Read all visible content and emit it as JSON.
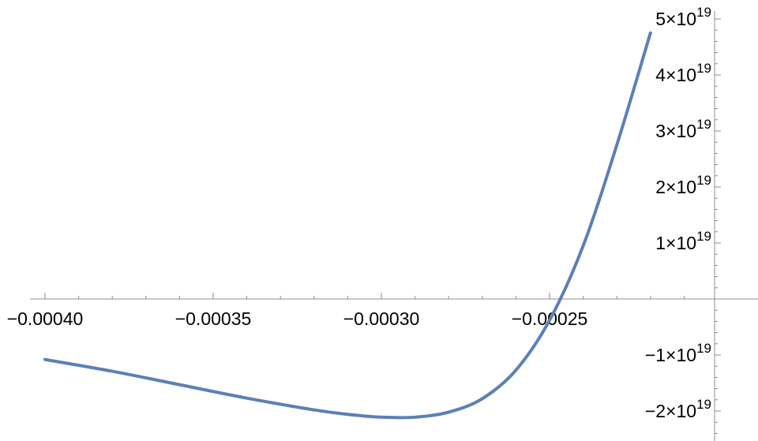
{
  "chart_data": {
    "type": "line",
    "title": "",
    "xlabel": "",
    "ylabel": "",
    "grid": false,
    "xlim": [
      -0.000405,
      -0.0002
    ],
    "ylim": [
      -2.4e+19,
      5.2e+19
    ],
    "x_ticks": [
      {
        "value": -0.0004,
        "label": "−0.00040"
      },
      {
        "value": -0.00035,
        "label": "−0.00035"
      },
      {
        "value": -0.0003,
        "label": "−0.00030"
      },
      {
        "value": -0.00025,
        "label": "−0.00025"
      }
    ],
    "y_ticks": [
      {
        "value": 5e+19,
        "mantissa": "5",
        "exponent": "19"
      },
      {
        "value": 4e+19,
        "mantissa": "4",
        "exponent": "19"
      },
      {
        "value": 3e+19,
        "mantissa": "3",
        "exponent": "19"
      },
      {
        "value": 2e+19,
        "mantissa": "2",
        "exponent": "19"
      },
      {
        "value": 1e+19,
        "mantissa": "1",
        "exponent": "19"
      },
      {
        "value": -1e+19,
        "mantissa": "−1",
        "exponent": "19"
      },
      {
        "value": -2e+19,
        "mantissa": "−2",
        "exponent": "19"
      }
    ],
    "series": [
      {
        "color": "#5d7fb6",
        "x": [
          -0.0004,
          -0.00038,
          -0.00036,
          -0.00034,
          -0.00032,
          -0.00031,
          -0.0003,
          -0.00029,
          -0.00028,
          -0.00027,
          -0.00026,
          -0.00025,
          -0.00024,
          -0.00023,
          -0.00022
        ],
        "y": [
          -1.08e+19,
          -1.29e+19,
          -1.53e+19,
          -1.77e+19,
          -1.98e+19,
          -2.06e+19,
          -2.11e+19,
          -2.11e+19,
          -2.02e+19,
          -1.78e+19,
          -1.27e+19,
          -3.8e+18,
          9.5e+18,
          2.75e+19,
          4.75e+19
        ]
      }
    ]
  }
}
